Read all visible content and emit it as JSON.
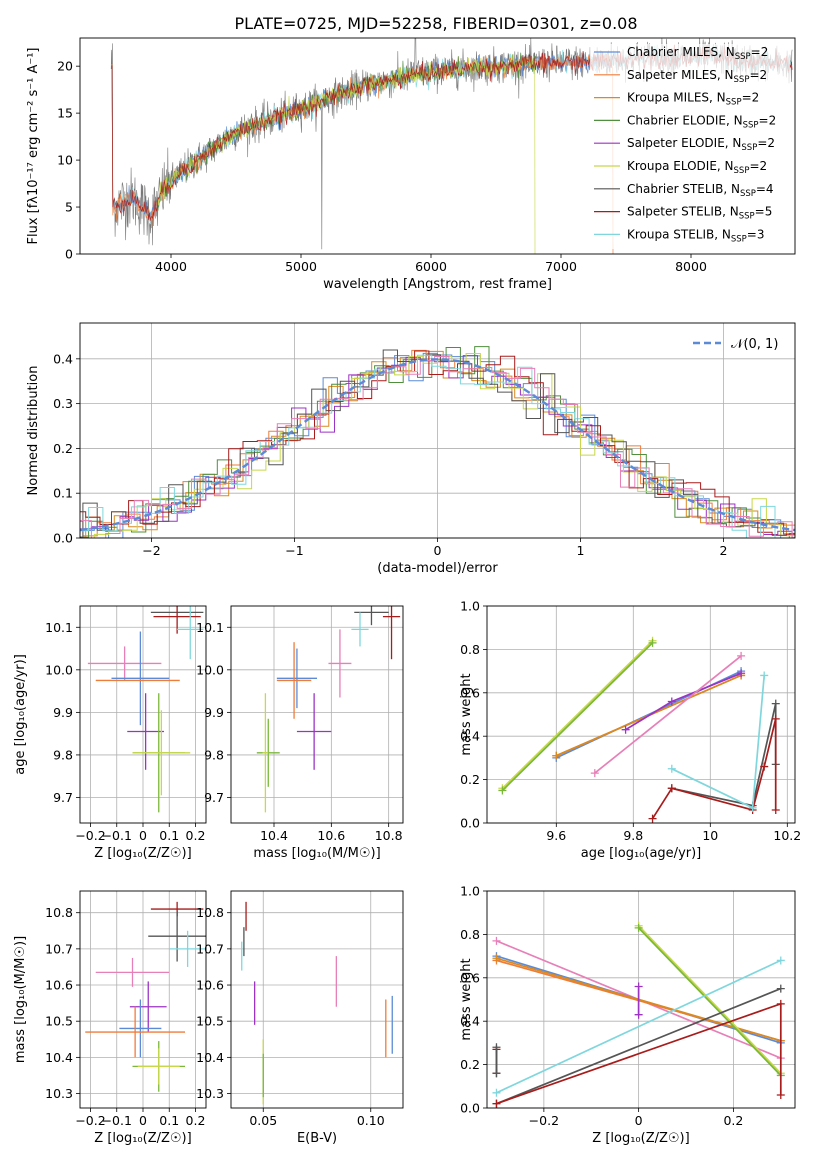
{
  "figure_title": "PLATE=0725, MJD=52258, FIBERID=0301, z=0.08",
  "colors": {
    "chabrier_miles": "#5b8bd6",
    "salpeter_miles": "#f07c3a",
    "kroupa_miles": "#d98a20",
    "chabrier_elodie": "#4f8f3e",
    "salpeter_elodie": "#9c33c4",
    "kroupa_elodie": "#c8d84a",
    "chabrier_stelib": "#555555",
    "salpeter_stelib": "#a81c1c",
    "kroupa_stelib": "#7fd7dd",
    "extra_pink": "#e77fb8",
    "extra_green": "#7ab83a",
    "gauss_line": "#5b8bd6"
  },
  "chart_data": [
    {
      "id": "spectrum",
      "type": "line",
      "title": "PLATE=0725, MJD=52258, FIBERID=0301, z=0.08",
      "xlabel": "wavelength [Angstrom, rest frame]",
      "ylabel": "Flux [fλ10⁻¹⁷ erg cm⁻² s⁻¹ A⁻¹]",
      "xlim": [
        3300,
        8800
      ],
      "ylim": [
        0,
        23
      ],
      "xticks": [
        4000,
        5000,
        6000,
        7000,
        8000
      ],
      "yticks": [
        0,
        5,
        10,
        15,
        20
      ],
      "legend_position": "upper-right",
      "legend": [
        {
          "label": "Chabrier MILES, N",
          "sub": "SSP",
          "suffix": "=2",
          "color": "#5b8bd6"
        },
        {
          "label": "Salpeter MILES, N",
          "sub": "SSP",
          "suffix": "=2",
          "color": "#f07c3a"
        },
        {
          "label": "Kroupa MILES, N",
          "sub": "SSP",
          "suffix": "=2",
          "color": "#d98a20"
        },
        {
          "label": "Chabrier ELODIE, N",
          "sub": "SSP",
          "suffix": "=2",
          "color": "#4f8f3e"
        },
        {
          "label": "Salpeter ELODIE, N",
          "sub": "SSP",
          "suffix": "=2",
          "color": "#9c33c4"
        },
        {
          "label": "Kroupa ELODIE, N",
          "sub": "SSP",
          "suffix": "=2",
          "color": "#c8d84a"
        },
        {
          "label": "Chabrier STELIB, N",
          "sub": "SSP",
          "suffix": "=4",
          "color": "#555555"
        },
        {
          "label": "Salpeter STELIB, N",
          "sub": "SSP",
          "suffix": "=5",
          "color": "#a81c1c"
        },
        {
          "label": "Kroupa STELIB, N",
          "sub": "SSP",
          "suffix": "=3",
          "color": "#7fd7dd"
        }
      ],
      "continuum": [
        [
          3550,
          5
        ],
        [
          3700,
          6
        ],
        [
          3850,
          4
        ],
        [
          3950,
          7
        ],
        [
          4100,
          9
        ],
        [
          4300,
          11
        ],
        [
          4500,
          13
        ],
        [
          4700,
          14
        ],
        [
          4900,
          15
        ],
        [
          5100,
          16
        ],
        [
          5300,
          17
        ],
        [
          5500,
          18
        ],
        [
          5700,
          18.5
        ],
        [
          5900,
          19.2
        ],
        [
          6100,
          19.5
        ],
        [
          6300,
          19.8
        ],
        [
          6500,
          20
        ],
        [
          6700,
          20.2
        ],
        [
          6900,
          20.3
        ],
        [
          7100,
          20.4
        ],
        [
          7300,
          20.5
        ],
        [
          7500,
          20.8
        ],
        [
          7700,
          21
        ],
        [
          7900,
          20.9
        ],
        [
          8100,
          21
        ],
        [
          8300,
          20.8
        ],
        [
          8500,
          20.4
        ],
        [
          8700,
          20.2
        ]
      ],
      "data_range": [
        3540,
        8780
      ],
      "model_ranges": {
        "miles": [
          3540,
          7400
        ],
        "elodie": [
          3900,
          6800
        ],
        "stelib": [
          3540,
          8780
        ]
      }
    },
    {
      "id": "residuals",
      "type": "step",
      "xlabel": "(data-model)/error",
      "ylabel": "Normed distribution",
      "xlim": [
        -2.5,
        2.5
      ],
      "ylim": [
        0,
        0.48
      ],
      "xticks": [
        -2,
        -1,
        0,
        1,
        2
      ],
      "yticks": [
        0.0,
        0.1,
        0.2,
        0.3,
        0.4
      ],
      "grid": true,
      "legend_position": "upper-right",
      "legend": [
        {
          "label": "𝒩(0, 1)",
          "color": "#5b8bd6",
          "style": "dashed"
        }
      ],
      "bin_width": 0.1
    },
    {
      "id": "age_vs_Z",
      "type": "errorbar",
      "xlabel": "Z [log₁₀(Z/Z☉)]",
      "ylabel": "age  [log₁₀(age/yr)]",
      "xlim": [
        -0.24,
        0.24
      ],
      "ylim": [
        9.64,
        10.15
      ],
      "xticks": [
        -0.2,
        -0.1,
        0.0,
        0.1,
        0.2
      ],
      "yticks": [
        9.7,
        9.8,
        9.9,
        10.0,
        10.1
      ],
      "grid": true,
      "points": [
        {
          "x": 0.13,
          "y": 10.135,
          "xerr": 0.1,
          "yerr": 0,
          "color": "#555555"
        },
        {
          "x": 0.13,
          "y": 10.125,
          "xerr": 0.09,
          "yerr": 0.04,
          "color": "#a81c1c"
        },
        {
          "x": 0.18,
          "y": 10.095,
          "xerr": 0.05,
          "yerr": 0.07,
          "color": "#7fd7dd"
        },
        {
          "x": -0.07,
          "y": 10.015,
          "xerr": 0.14,
          "yerr": 0.04,
          "color": "#e77fb8"
        },
        {
          "x": -0.01,
          "y": 9.98,
          "xerr": 0.11,
          "yerr": 0.11,
          "color": "#5b8bd6"
        },
        {
          "x": -0.02,
          "y": 9.975,
          "xerr": 0.16,
          "yerr": 0,
          "color": "#f07c3a"
        },
        {
          "x": 0.01,
          "y": 9.855,
          "xerr": 0.07,
          "yerr": 0.09,
          "color": "#9c33c4"
        },
        {
          "x": 0.06,
          "y": 9.805,
          "xerr": 0.1,
          "yerr": 0.14,
          "color": "#7ab83a"
        },
        {
          "x": 0.07,
          "y": 9.805,
          "xerr": 0.11,
          "yerr": 0.1,
          "color": "#c8d84a"
        }
      ]
    },
    {
      "id": "age_vs_mass",
      "type": "errorbar",
      "xlabel": "mass [log₁₀(M/M☉)]",
      "ylabel": "",
      "xlim": [
        10.25,
        10.85
      ],
      "ylim": [
        9.64,
        10.15
      ],
      "xticks": [
        10.4,
        10.6,
        10.8
      ],
      "yticks": [
        9.7,
        9.8,
        9.9,
        10.0,
        10.1
      ],
      "grid": true,
      "points": [
        {
          "x": 10.74,
          "y": 10.135,
          "xerr": 0.06,
          "yerr": 0.03,
          "color": "#555555"
        },
        {
          "x": 10.81,
          "y": 10.125,
          "xerr": 0.03,
          "yerr": 0.1,
          "color": "#a81c1c"
        },
        {
          "x": 10.7,
          "y": 10.095,
          "xerr": 0.03,
          "yerr": 0.04,
          "color": "#7fd7dd"
        },
        {
          "x": 10.63,
          "y": 10.015,
          "xerr": 0.04,
          "yerr": 0.08,
          "color": "#e77fb8"
        },
        {
          "x": 10.48,
          "y": 9.98,
          "xerr": 0.07,
          "yerr": 0.07,
          "color": "#5b8bd6"
        },
        {
          "x": 10.47,
          "y": 9.975,
          "xerr": 0.06,
          "yerr": 0.09,
          "color": "#f07c3a"
        },
        {
          "x": 10.54,
          "y": 9.855,
          "xerr": 0.06,
          "yerr": 0.09,
          "color": "#9c33c4"
        },
        {
          "x": 10.38,
          "y": 9.805,
          "xerr": 0.04,
          "yerr": 0.08,
          "color": "#7ab83a"
        },
        {
          "x": 10.37,
          "y": 9.805,
          "xerr": 0.01,
          "yerr": 0.14,
          "color": "#c8d84a"
        }
      ]
    },
    {
      "id": "weight_vs_age",
      "type": "line",
      "xlabel": "age  [log₁₀(age/yr)]",
      "ylabel": "mass weight",
      "xlim": [
        9.42,
        10.22
      ],
      "ylim": [
        0,
        1.0
      ],
      "xticks": [
        9.6,
        9.8,
        10.0,
        10.2
      ],
      "yticks": [
        0.0,
        0.2,
        0.4,
        0.6,
        0.8,
        1.0
      ],
      "grid": true,
      "series": [
        {
          "color": "#5b8bd6",
          "points": [
            [
              9.6,
              0.3
            ],
            [
              10.08,
              0.7
            ]
          ]
        },
        {
          "color": "#f07c3a",
          "points": [
            [
              9.6,
              0.31
            ],
            [
              10.08,
              0.68
            ]
          ]
        },
        {
          "color": "#d98a20",
          "points": [
            [
              9.6,
              0.31
            ],
            [
              10.08,
              0.68
            ]
          ]
        },
        {
          "color": "#9c33c4",
          "points": [
            [
              9.78,
              0.43
            ],
            [
              9.9,
              0.56
            ],
            [
              10.08,
              0.69
            ]
          ]
        },
        {
          "color": "#c8d84a",
          "points": [
            [
              9.46,
              0.16
            ],
            [
              9.85,
              0.84
            ]
          ]
        },
        {
          "color": "#7ab83a",
          "points": [
            [
              9.46,
              0.15
            ],
            [
              9.85,
              0.83
            ]
          ]
        },
        {
          "color": "#e77fb8",
          "points": [
            [
              9.7,
              0.23
            ],
            [
              10.08,
              0.77
            ]
          ]
        },
        {
          "color": "#555555",
          "points": [
            [
              9.9,
              0.16
            ],
            [
              10.11,
              0.08
            ],
            [
              10.17,
              0.55
            ],
            [
              10.17,
              0.27
            ]
          ]
        },
        {
          "color": "#a81c1c",
          "points": [
            [
              9.85,
              0.02
            ],
            [
              9.9,
              0.16
            ],
            [
              10.11,
              0.06
            ],
            [
              10.14,
              0.26
            ],
            [
              10.17,
              0.48
            ],
            [
              10.17,
              0.06
            ]
          ]
        },
        {
          "color": "#7fd7dd",
          "points": [
            [
              9.9,
              0.25
            ],
            [
              10.11,
              0.07
            ],
            [
              10.14,
              0.68
            ]
          ]
        }
      ]
    },
    {
      "id": "mass_vs_Z",
      "type": "errorbar",
      "xlabel": "Z [log₁₀(Z/Z☉)]",
      "ylabel": "mass [log₁₀(M/M☉)]",
      "xlim": [
        -0.24,
        0.24
      ],
      "ylim": [
        10.26,
        10.86
      ],
      "xticks": [
        -0.2,
        -0.1,
        0.0,
        0.1,
        0.2
      ],
      "yticks": [
        10.3,
        10.4,
        10.5,
        10.6,
        10.7,
        10.8
      ],
      "grid": true,
      "points": [
        {
          "x": 0.13,
          "y": 10.81,
          "xerr": 0.1,
          "yerr": 0.02,
          "color": "#a81c1c"
        },
        {
          "x": 0.13,
          "y": 10.735,
          "xerr": 0.11,
          "yerr": 0.07,
          "color": "#555555"
        },
        {
          "x": 0.17,
          "y": 10.7,
          "xerr": 0.07,
          "yerr": 0.05,
          "color": "#7fd7dd"
        },
        {
          "x": -0.04,
          "y": 10.635,
          "xerr": 0.14,
          "yerr": 0.04,
          "color": "#e77fb8"
        },
        {
          "x": 0.02,
          "y": 10.54,
          "xerr": 0.07,
          "yerr": 0.07,
          "color": "#9c33c4"
        },
        {
          "x": -0.01,
          "y": 10.48,
          "xerr": 0.08,
          "yerr": 0.08,
          "color": "#5b8bd6"
        },
        {
          "x": -0.03,
          "y": 10.47,
          "xerr": 0.19,
          "yerr": 0.07,
          "color": "#f07c3a"
        },
        {
          "x": 0.06,
          "y": 10.375,
          "xerr": 0.1,
          "yerr": 0.07,
          "color": "#7ab83a"
        },
        {
          "x": 0.06,
          "y": 10.375,
          "xerr": 0.08,
          "yerr": 0.05,
          "color": "#c8d84a"
        }
      ]
    },
    {
      "id": "mass_vs_ebv",
      "type": "errorbar",
      "xlabel": "E(B-V)",
      "ylabel": "",
      "xlim": [
        0.035,
        0.115
      ],
      "ylim": [
        10.26,
        10.86
      ],
      "xticks": [
        0.05,
        0.1
      ],
      "yticks": [
        10.3,
        10.4,
        10.5,
        10.6,
        10.7,
        10.8
      ],
      "grid": true,
      "points": [
        {
          "x": 0.042,
          "y": 10.79,
          "xerr": 0,
          "yerr": 0.04,
          "color": "#a81c1c"
        },
        {
          "x": 0.041,
          "y": 10.72,
          "xerr": 0,
          "yerr": 0.04,
          "color": "#555555"
        },
        {
          "x": 0.04,
          "y": 10.68,
          "xerr": 0,
          "yerr": 0.04,
          "color": "#7fd7dd"
        },
        {
          "x": 0.084,
          "y": 10.61,
          "xerr": 0,
          "yerr": 0.07,
          "color": "#e77fb8"
        },
        {
          "x": 0.046,
          "y": 10.55,
          "xerr": 0,
          "yerr": 0.06,
          "color": "#9c33c4"
        },
        {
          "x": 0.11,
          "y": 10.49,
          "xerr": 0,
          "yerr": 0.08,
          "color": "#5b8bd6"
        },
        {
          "x": 0.107,
          "y": 10.48,
          "xerr": 0,
          "yerr": 0.08,
          "color": "#f07c3a"
        },
        {
          "x": 0.05,
          "y": 10.36,
          "xerr": 0,
          "yerr": 0.09,
          "color": "#c8d84a"
        },
        {
          "x": 0.05,
          "y": 10.35,
          "xerr": 0,
          "yerr": 0.06,
          "color": "#7ab83a"
        }
      ]
    },
    {
      "id": "weight_vs_Z",
      "type": "line",
      "xlabel": "Z [log₁₀(Z/Z☉)]",
      "ylabel": "mass weight",
      "xlim": [
        -0.32,
        0.33
      ],
      "ylim": [
        0,
        1.0
      ],
      "xticks": [
        -0.2,
        0.0,
        0.2
      ],
      "yticks": [
        0.0,
        0.2,
        0.4,
        0.6,
        0.8,
        1.0
      ],
      "grid": true,
      "series": [
        {
          "color": "#e77fb8",
          "points": [
            [
              -0.3,
              0.77
            ],
            [
              0.3,
              0.23
            ]
          ]
        },
        {
          "color": "#5b8bd6",
          "points": [
            [
              -0.3,
              0.7
            ],
            [
              0.3,
              0.3
            ]
          ]
        },
        {
          "color": "#f07c3a",
          "points": [
            [
              -0.3,
              0.68
            ],
            [
              0.3,
              0.31
            ]
          ]
        },
        {
          "color": "#d98a20",
          "points": [
            [
              -0.3,
              0.69
            ],
            [
              0.3,
              0.31
            ]
          ]
        },
        {
          "color": "#c8d84a",
          "points": [
            [
              0.0,
              0.84
            ],
            [
              0.3,
              0.16
            ]
          ]
        },
        {
          "color": "#7ab83a",
          "points": [
            [
              0.0,
              0.83
            ],
            [
              0.3,
              0.15
            ]
          ]
        },
        {
          "color": "#9c33c4",
          "points": [
            [
              0.0,
              0.56
            ],
            [
              0.0,
              0.43
            ]
          ]
        },
        {
          "color": "#7fd7dd",
          "points": [
            [
              -0.3,
              0.07
            ],
            [
              0.3,
              0.68
            ]
          ]
        },
        {
          "color": "#555555",
          "points": [
            [
              -0.3,
              0.02
            ],
            [
              0.3,
              0.55
            ]
          ]
        },
        {
          "color": "#a81c1c",
          "points": [
            [
              -0.3,
              0.02
            ],
            [
              0.3,
              0.48
            ],
            [
              0.3,
              0.06
            ]
          ]
        },
        {
          "color": "#a81c1c",
          "points": [
            [
              -0.3,
              0.27
            ],
            [
              -0.3,
              0.16
            ]
          ]
        },
        {
          "color": "#555555",
          "points": [
            [
              -0.3,
              0.28
            ],
            [
              -0.3,
              0.16
            ]
          ]
        }
      ]
    }
  ]
}
